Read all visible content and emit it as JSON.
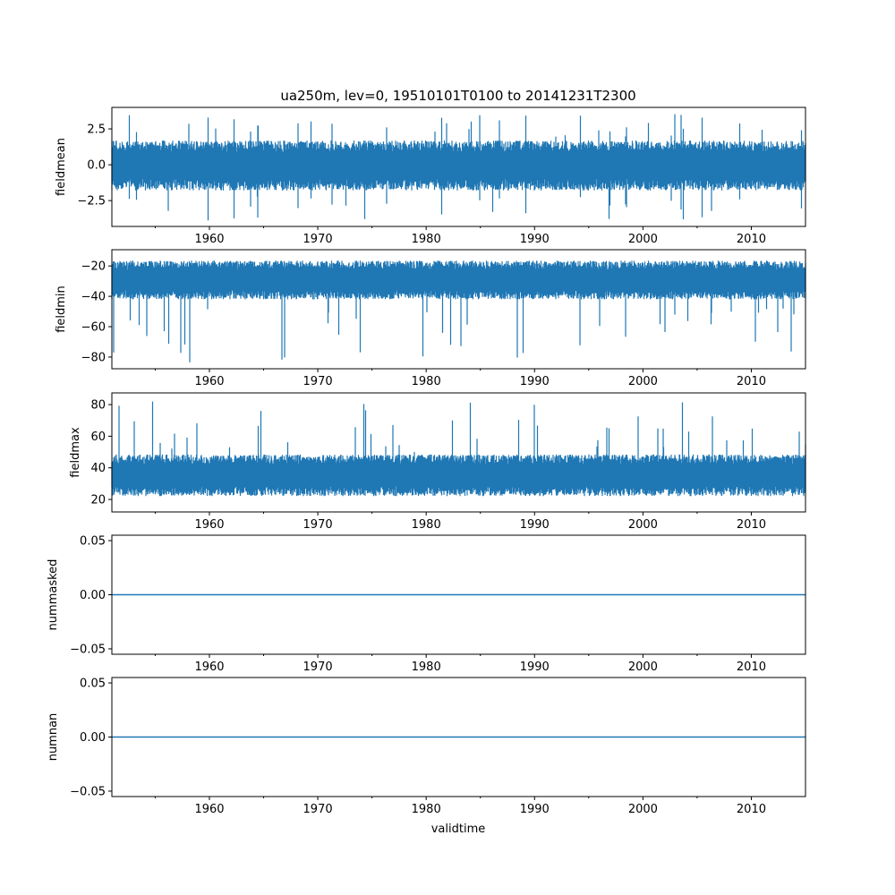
{
  "chart_data": {
    "type": "line",
    "title": "ua250m, lev=0, 19510101T0100 to 20141231T2300",
    "xlabel": "validtime",
    "xlim": [
      1951.0,
      2015.0
    ],
    "x_ticks": [
      1960,
      1970,
      1980,
      1990,
      2000,
      2010
    ],
    "x_minor_ticks": [
      1955,
      1965,
      1975,
      1985,
      1995,
      2005
    ],
    "color": "#1f77b4",
    "panels": [
      {
        "ylabel": "fieldmean",
        "ylim": [
          -4.3,
          4.0
        ],
        "y_ticks": [
          2.5,
          0.0,
          -2.5
        ],
        "y_tick_labels": [
          "2.5",
          "0.0",
          "−2.5"
        ],
        "series": {
          "typical_range": [
            -2.2,
            1.9
          ],
          "max": 3.6,
          "min": -3.9,
          "center": -0.2
        }
      },
      {
        "ylabel": "fieldmin",
        "ylim": [
          -87.7,
          -9.3
        ],
        "y_ticks": [
          -20,
          -40,
          -60,
          -80
        ],
        "y_tick_labels": [
          "−20",
          "−40",
          "−60",
          "−80"
        ],
        "series": {
          "typical_range": [
            -45,
            -15
          ],
          "max": -13,
          "min": -84,
          "center": -28
        }
      },
      {
        "ylabel": "fieldmax",
        "ylim": [
          12.1,
          87.4
        ],
        "y_ticks": [
          80,
          60,
          40,
          20
        ],
        "y_tick_labels": [
          "80",
          "60",
          "40",
          "20"
        ],
        "series": {
          "typical_range": [
            19,
            50
          ],
          "max": 83,
          "min": 17,
          "center": 30
        }
      },
      {
        "ylabel": "nummasked",
        "ylim": [
          -0.055,
          0.055
        ],
        "y_ticks": [
          0.05,
          0.0,
          -0.05
        ],
        "y_tick_labels": [
          "0.05",
          "0.00",
          "−0.05"
        ],
        "series": {
          "constant": 0.0
        }
      },
      {
        "ylabel": "numnan",
        "ylim": [
          -0.055,
          0.055
        ],
        "y_ticks": [
          0.05,
          0.0,
          -0.05
        ],
        "y_tick_labels": [
          "0.05",
          "0.00",
          "−0.05"
        ],
        "series": {
          "constant": 0.0
        }
      }
    ]
  }
}
